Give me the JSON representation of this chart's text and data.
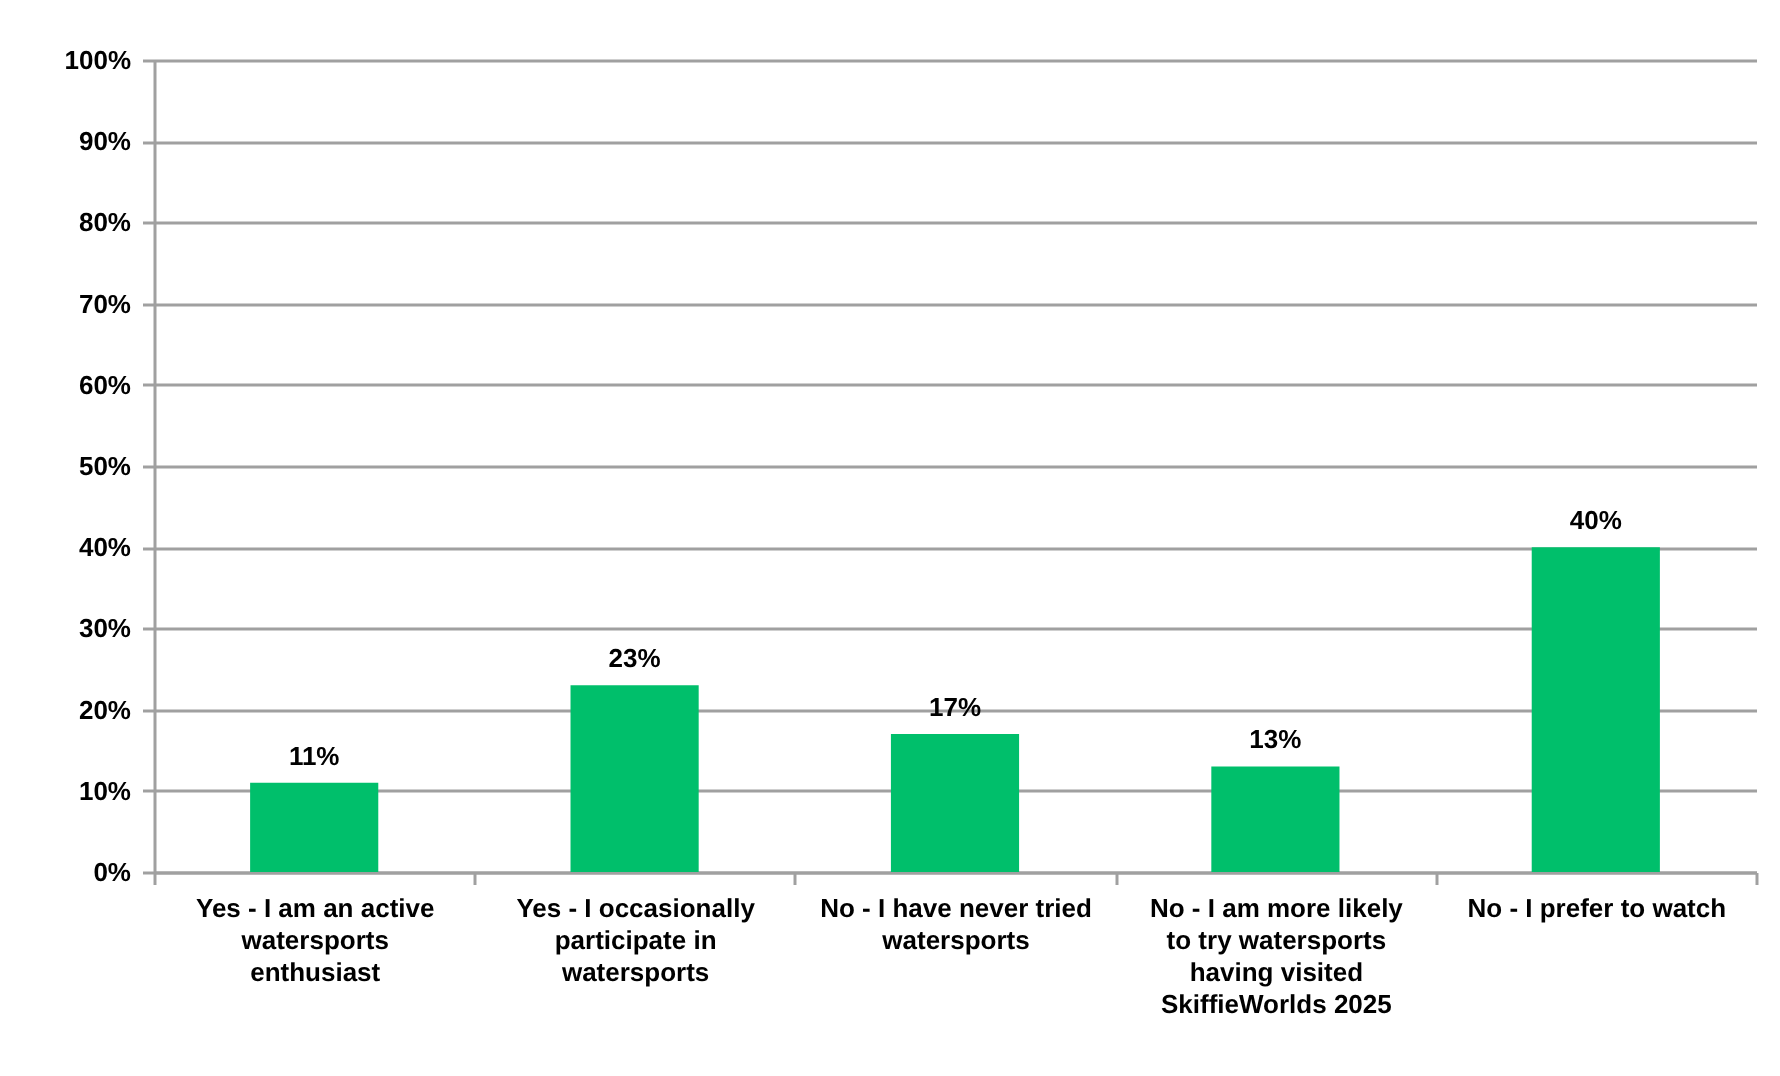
{
  "chart_data": {
    "type": "bar",
    "categories": [
      "Yes - I am an active watersports enthusiast",
      "Yes - I occasionally participate in watersports",
      "No - I have never tried watersports",
      "No - I am more likely to try watersports having visited SkiffieWorlds 2025",
      "No - I prefer to watch"
    ],
    "values": [
      11,
      23,
      17,
      13,
      40
    ],
    "value_labels": [
      "11%",
      "23%",
      "17%",
      "13%",
      "40%"
    ],
    "color": "#00bf6b",
    "ylim": [
      0,
      100
    ],
    "yticks": [
      {
        "value": 0,
        "label": "0%"
      },
      {
        "value": 10,
        "label": "10%"
      },
      {
        "value": 20,
        "label": "20%"
      },
      {
        "value": 30,
        "label": "30%"
      },
      {
        "value": 40,
        "label": "40%"
      },
      {
        "value": 50,
        "label": "50%"
      },
      {
        "value": 60,
        "label": "60%"
      },
      {
        "value": 70,
        "label": "70%"
      },
      {
        "value": 80,
        "label": "80%"
      },
      {
        "value": 90,
        "label": "90%"
      },
      {
        "value": 100,
        "label": "100%"
      }
    ],
    "grid": "y"
  }
}
